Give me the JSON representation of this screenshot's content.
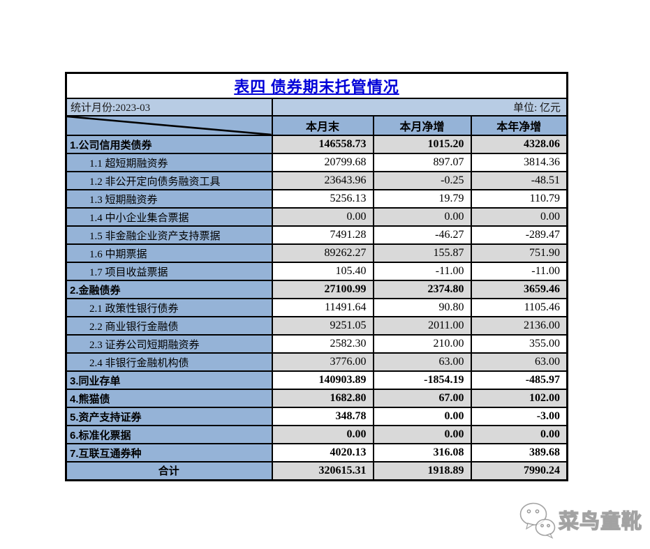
{
  "table": {
    "title": "表四 债券期末托管情况",
    "meta": {
      "period_label": "统计月份:2023-03",
      "unit_label": "单位: 亿元"
    },
    "columns": [
      "本月末",
      "本月净增",
      "本年净增"
    ],
    "rows": [
      {
        "label": "1.公司信用类债券",
        "level": "top",
        "shade": "g",
        "values": [
          "146558.73",
          "1015.20",
          "4328.06"
        ]
      },
      {
        "label": "1.1 超短期融资券",
        "level": "sub",
        "shade": "w",
        "values": [
          "20799.68",
          "897.07",
          "3814.36"
        ]
      },
      {
        "label": "1.2 非公开定向债务融资工具",
        "level": "sub",
        "shade": "g",
        "values": [
          "23643.96",
          "-0.25",
          "-48.51"
        ]
      },
      {
        "label": "1.3 短期融资券",
        "level": "sub",
        "shade": "w",
        "values": [
          "5256.13",
          "19.79",
          "110.79"
        ]
      },
      {
        "label": "1.4 中小企业集合票据",
        "level": "sub",
        "shade": "g",
        "values": [
          "0.00",
          "0.00",
          "0.00"
        ]
      },
      {
        "label": "1.5 非金融企业资产支持票据",
        "level": "sub",
        "shade": "w",
        "values": [
          "7491.28",
          "-46.27",
          "-289.47"
        ]
      },
      {
        "label": "1.6 中期票据",
        "level": "sub",
        "shade": "g",
        "values": [
          "89262.27",
          "155.87",
          "751.90"
        ]
      },
      {
        "label": "1.7 项目收益票据",
        "level": "sub",
        "shade": "w",
        "values": [
          "105.40",
          "-11.00",
          "-11.00"
        ]
      },
      {
        "label": "2.金融债券",
        "level": "top",
        "shade": "g",
        "values": [
          "27100.99",
          "2374.80",
          "3659.46"
        ]
      },
      {
        "label": "2.1 政策性银行债券",
        "level": "sub",
        "shade": "w",
        "values": [
          "11491.64",
          "90.80",
          "1105.46"
        ]
      },
      {
        "label": "2.2 商业银行金融债",
        "level": "sub",
        "shade": "g",
        "values": [
          "9251.05",
          "2011.00",
          "2136.00"
        ]
      },
      {
        "label": "2.3 证券公司短期融资券",
        "level": "sub",
        "shade": "w",
        "values": [
          "2582.30",
          "210.00",
          "355.00"
        ]
      },
      {
        "label": "2.4 非银行金融机构债",
        "level": "sub",
        "shade": "g",
        "values": [
          "3776.00",
          "63.00",
          "63.00"
        ]
      },
      {
        "label": "3.同业存单",
        "level": "top",
        "shade": "w",
        "values": [
          "140903.89",
          "-1854.19",
          "-485.97"
        ]
      },
      {
        "label": "4.熊猫债",
        "level": "top",
        "shade": "g",
        "values": [
          "1682.80",
          "67.00",
          "102.00"
        ]
      },
      {
        "label": "5.资产支持证券",
        "level": "top",
        "shade": "w",
        "values": [
          "348.78",
          "0.00",
          "-3.00"
        ]
      },
      {
        "label": "6.标准化票据",
        "level": "top",
        "shade": "g",
        "values": [
          "0.00",
          "0.00",
          "0.00"
        ]
      },
      {
        "label": "7.互联互通券种",
        "level": "top",
        "shade": "w",
        "values": [
          "4020.13",
          "316.08",
          "389.68"
        ]
      },
      {
        "label": "合计",
        "level": "total",
        "shade": "g",
        "values": [
          "320615.31",
          "1918.89",
          "7990.24"
        ]
      }
    ],
    "colors": {
      "header_blue": "#95b3d7",
      "meta_blue": "#b8cce4",
      "row_gray": "#d9d9d9",
      "title_blue": "#0000d8",
      "border": "#000000"
    }
  },
  "watermark": {
    "text": "菜鸟童靴",
    "icon": "wechat-icon"
  }
}
